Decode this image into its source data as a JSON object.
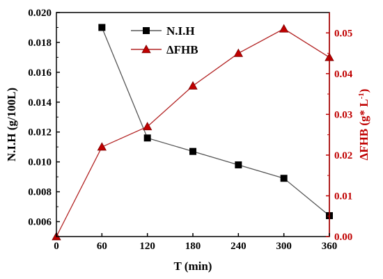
{
  "chart_data": {
    "type": "line",
    "title": "",
    "xlabel": "T (min)",
    "x_ticks": [
      "0",
      "60",
      "120",
      "180",
      "240",
      "300",
      "360"
    ],
    "xlim": [
      0,
      360
    ],
    "y_left": {
      "label": "N.I.H (g/100L)",
      "lim": [
        0.005,
        0.02
      ],
      "ticks": [
        "0.006",
        "0.008",
        "0.010",
        "0.012",
        "0.014",
        "0.016",
        "0.018",
        "0.020"
      ],
      "color": "#000000"
    },
    "y_right": {
      "label_main": "ΔFHB (g* L",
      "label_sup": "-1",
      "label_end": ")",
      "lim": [
        0,
        0.055
      ],
      "ticks": [
        "0.00",
        "0.01",
        "0.02",
        "0.03",
        "0.04",
        "0.05"
      ],
      "color": "#c00000"
    },
    "legend_position": "top-center",
    "grid": false,
    "series": [
      {
        "name": "N.I.H",
        "axis": "left",
        "marker": "square",
        "color": "#000000",
        "line_color": "#555555",
        "x": [
          60,
          120,
          180,
          240,
          300,
          360
        ],
        "y": [
          0.019,
          0.0116,
          0.0107,
          0.0098,
          0.0089,
          0.0064
        ]
      },
      {
        "name": "ΔFHB",
        "axis": "right",
        "marker": "triangle",
        "color": "#c00000",
        "line_color": "#b22222",
        "x": [
          0,
          60,
          120,
          180,
          240,
          300,
          360
        ],
        "y": [
          0.0,
          0.022,
          0.027,
          0.037,
          0.045,
          0.051,
          0.044
        ]
      }
    ]
  }
}
